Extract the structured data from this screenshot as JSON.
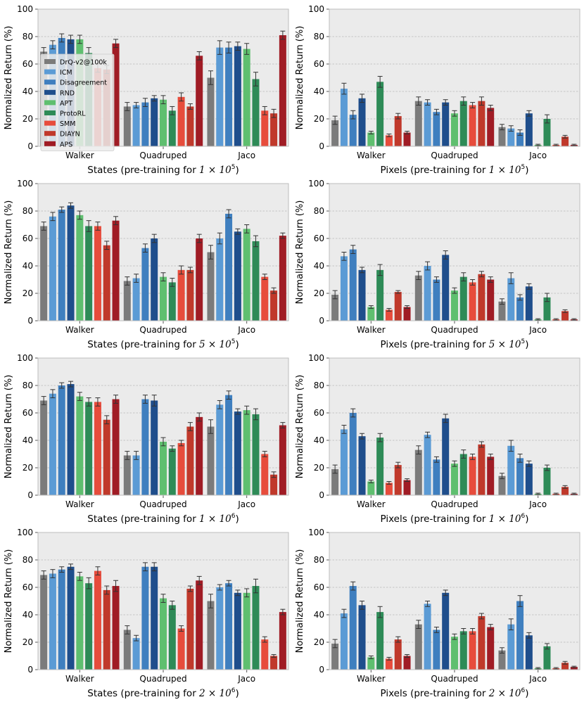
{
  "figure": {
    "ylabel": "Normalized Return (%)",
    "categories": [
      "Walker",
      "Quadruped",
      "Jaco"
    ],
    "method_names": [
      "DrQ-v2@100k",
      "ICM",
      "Disagreement",
      "RND",
      "APT",
      "ProtoRL",
      "SMM",
      "DIAYN",
      "APS"
    ],
    "method_colors": [
      "#7b7b7b",
      "#5b9bd5",
      "#3f7fbf",
      "#1f4e8c",
      "#5fbf6f",
      "#2e8b57",
      "#e74c3c",
      "#c0392b",
      "#a01c25"
    ]
  },
  "chart_data": [
    {
      "type": "bar",
      "xlabel": "States (pre-training for",
      "xlabel_math": "1 × 10",
      "xlabel_exp": "5",
      "categories": [
        "Walker",
        "Quadruped",
        "Jaco"
      ],
      "ylim": [
        0,
        100
      ],
      "yticks": [
        0,
        20,
        40,
        60,
        80,
        100
      ],
      "grid": true,
      "legend": "upper-left",
      "series": [
        {
          "name": "DrQ-v2@100k",
          "values": [
            69,
            29,
            50
          ],
          "errors": [
            3,
            3,
            5
          ]
        },
        {
          "name": "ICM",
          "values": [
            74,
            30,
            72
          ],
          "errors": [
            3,
            2,
            5
          ]
        },
        {
          "name": "Disagreement",
          "values": [
            79,
            32,
            72
          ],
          "errors": [
            3,
            3,
            4
          ]
        },
        {
          "name": "RND",
          "values": [
            78,
            35,
            73
          ],
          "errors": [
            3,
            2,
            3
          ]
        },
        {
          "name": "APT",
          "values": [
            78,
            34,
            71
          ],
          "errors": [
            3,
            3,
            4
          ]
        },
        {
          "name": "ProtoRL",
          "values": [
            68,
            26,
            49
          ],
          "errors": [
            4,
            3,
            5
          ]
        },
        {
          "name": "SMM",
          "values": [
            57,
            36,
            26
          ],
          "errors": [
            3,
            3,
            3
          ]
        },
        {
          "name": "DIAYN",
          "values": [
            56,
            29,
            24
          ],
          "errors": [
            3,
            2,
            3
          ]
        },
        {
          "name": "APS",
          "values": [
            75,
            66,
            81
          ],
          "errors": [
            3,
            3,
            3
          ]
        }
      ]
    },
    {
      "type": "bar",
      "xlabel": "Pixels (pre-training for",
      "xlabel_math": "1 × 10",
      "xlabel_exp": "5",
      "categories": [
        "Walker",
        "Quadruped",
        "Jaco"
      ],
      "ylim": [
        0,
        100
      ],
      "yticks": [
        0,
        20,
        40,
        60,
        80,
        100
      ],
      "grid": true,
      "series": [
        {
          "name": "DrQ-v2@100k",
          "values": [
            19,
            33,
            14
          ],
          "errors": [
            3,
            3,
            2
          ]
        },
        {
          "name": "ICM",
          "values": [
            42,
            32,
            13
          ],
          "errors": [
            4,
            2,
            2
          ]
        },
        {
          "name": "Disagreement",
          "values": [
            23,
            25,
            10
          ],
          "errors": [
            3,
            2,
            2
          ]
        },
        {
          "name": "RND",
          "values": [
            35,
            32,
            24
          ],
          "errors": [
            3,
            2,
            2
          ]
        },
        {
          "name": "APT",
          "values": [
            10,
            24,
            1
          ],
          "errors": [
            1,
            2,
            0.5
          ]
        },
        {
          "name": "ProtoRL",
          "values": [
            47,
            33,
            20
          ],
          "errors": [
            4,
            3,
            3
          ]
        },
        {
          "name": "SMM",
          "values": [
            8,
            30,
            1
          ],
          "errors": [
            1,
            2,
            0.5
          ]
        },
        {
          "name": "DIAYN",
          "values": [
            22,
            33,
            7
          ],
          "errors": [
            2,
            3,
            1
          ]
        },
        {
          "name": "APS",
          "values": [
            10,
            28,
            1
          ],
          "errors": [
            1,
            2,
            0.5
          ]
        }
      ]
    },
    {
      "type": "bar",
      "xlabel": "States (pre-training for",
      "xlabel_math": "5 × 10",
      "xlabel_exp": "5",
      "categories": [
        "Walker",
        "Quadruped",
        "Jaco"
      ],
      "ylim": [
        0,
        100
      ],
      "yticks": [
        0,
        20,
        40,
        60,
        80,
        100
      ],
      "grid": true,
      "series": [
        {
          "name": "DrQ-v2@100k",
          "values": [
            69,
            29,
            50
          ],
          "errors": [
            3,
            3,
            5
          ]
        },
        {
          "name": "ICM",
          "values": [
            76,
            31,
            60
          ],
          "errors": [
            3,
            3,
            4
          ]
        },
        {
          "name": "Disagreement",
          "values": [
            81,
            53,
            78
          ],
          "errors": [
            2,
            3,
            3
          ]
        },
        {
          "name": "RND",
          "values": [
            84,
            60,
            65
          ],
          "errors": [
            2,
            3,
            2
          ]
        },
        {
          "name": "APT",
          "values": [
            77,
            32,
            67
          ],
          "errors": [
            3,
            3,
            3
          ]
        },
        {
          "name": "ProtoRL",
          "values": [
            69,
            28,
            58
          ],
          "errors": [
            4,
            3,
            4
          ]
        },
        {
          "name": "SMM",
          "values": [
            69,
            37,
            32
          ],
          "errors": [
            3,
            3,
            2
          ]
        },
        {
          "name": "DIAYN",
          "values": [
            55,
            37,
            22
          ],
          "errors": [
            3,
            2,
            2
          ]
        },
        {
          "name": "APS",
          "values": [
            73,
            60,
            62
          ],
          "errors": [
            3,
            3,
            2
          ]
        }
      ]
    },
    {
      "type": "bar",
      "xlabel": "Pixels (pre-training for",
      "xlabel_math": "5 × 10",
      "xlabel_exp": "5",
      "categories": [
        "Walker",
        "Quadruped",
        "Jaco"
      ],
      "ylim": [
        0,
        100
      ],
      "yticks": [
        0,
        20,
        40,
        60,
        80,
        100
      ],
      "grid": true,
      "series": [
        {
          "name": "DrQ-v2@100k",
          "values": [
            19,
            33,
            14
          ],
          "errors": [
            3,
            3,
            2
          ]
        },
        {
          "name": "ICM",
          "values": [
            47,
            40,
            31
          ],
          "errors": [
            3,
            3,
            4
          ]
        },
        {
          "name": "Disagreement",
          "values": [
            52,
            30,
            17
          ],
          "errors": [
            3,
            2,
            2
          ]
        },
        {
          "name": "RND",
          "values": [
            37,
            48,
            25
          ],
          "errors": [
            2,
            3,
            2
          ]
        },
        {
          "name": "APT",
          "values": [
            10,
            22,
            1
          ],
          "errors": [
            1,
            2,
            0.5
          ]
        },
        {
          "name": "ProtoRL",
          "values": [
            37,
            32,
            17
          ],
          "errors": [
            4,
            3,
            3
          ]
        },
        {
          "name": "SMM",
          "values": [
            8,
            28,
            1
          ],
          "errors": [
            1,
            2,
            0.5
          ]
        },
        {
          "name": "DIAYN",
          "values": [
            21,
            34,
            7
          ],
          "errors": [
            1,
            2,
            1
          ]
        },
        {
          "name": "APS",
          "values": [
            10,
            30,
            1
          ],
          "errors": [
            1,
            2,
            0.5
          ]
        }
      ]
    },
    {
      "type": "bar",
      "xlabel": "States (pre-training for",
      "xlabel_math": "1 × 10",
      "xlabel_exp": "6",
      "categories": [
        "Walker",
        "Quadruped",
        "Jaco"
      ],
      "ylim": [
        0,
        100
      ],
      "yticks": [
        0,
        20,
        40,
        60,
        80,
        100
      ],
      "grid": true,
      "series": [
        {
          "name": "DrQ-v2@100k",
          "values": [
            69,
            29,
            50
          ],
          "errors": [
            3,
            3,
            5
          ]
        },
        {
          "name": "ICM",
          "values": [
            74,
            29,
            66
          ],
          "errors": [
            3,
            3,
            3
          ]
        },
        {
          "name": "Disagreement",
          "values": [
            80,
            70,
            73
          ],
          "errors": [
            2,
            3,
            3
          ]
        },
        {
          "name": "RND",
          "values": [
            81,
            69,
            61
          ],
          "errors": [
            2,
            4,
            2
          ]
        },
        {
          "name": "APT",
          "values": [
            72,
            39,
            62
          ],
          "errors": [
            3,
            3,
            3
          ]
        },
        {
          "name": "ProtoRL",
          "values": [
            68,
            34,
            59
          ],
          "errors": [
            3,
            2,
            4
          ]
        },
        {
          "name": "SMM",
          "values": [
            68,
            38,
            30
          ],
          "errors": [
            3,
            2,
            2
          ]
        },
        {
          "name": "DIAYN",
          "values": [
            55,
            50,
            15
          ],
          "errors": [
            3,
            3,
            2
          ]
        },
        {
          "name": "APS",
          "values": [
            70,
            57,
            51
          ],
          "errors": [
            3,
            3,
            2
          ]
        }
      ]
    },
    {
      "type": "bar",
      "xlabel": "Pixels (pre-training for",
      "xlabel_math": "1 × 10",
      "xlabel_exp": "6",
      "categories": [
        "Walker",
        "Quadruped",
        "Jaco"
      ],
      "ylim": [
        0,
        100
      ],
      "yticks": [
        0,
        20,
        40,
        60,
        80,
        100
      ],
      "grid": true,
      "series": [
        {
          "name": "DrQ-v2@100k",
          "values": [
            19,
            33,
            14
          ],
          "errors": [
            3,
            3,
            2
          ]
        },
        {
          "name": "ICM",
          "values": [
            48,
            44,
            36
          ],
          "errors": [
            3,
            2,
            4
          ]
        },
        {
          "name": "Disagreement",
          "values": [
            60,
            26,
            27
          ],
          "errors": [
            3,
            2,
            3
          ]
        },
        {
          "name": "RND",
          "values": [
            43,
            56,
            23
          ],
          "errors": [
            2,
            3,
            2
          ]
        },
        {
          "name": "APT",
          "values": [
            10,
            23,
            1
          ],
          "errors": [
            1,
            2,
            0.5
          ]
        },
        {
          "name": "ProtoRL",
          "values": [
            42,
            30,
            20
          ],
          "errors": [
            3,
            3,
            2
          ]
        },
        {
          "name": "SMM",
          "values": [
            9,
            28,
            1
          ],
          "errors": [
            1,
            2,
            0.5
          ]
        },
        {
          "name": "DIAYN",
          "values": [
            22,
            37,
            6
          ],
          "errors": [
            2,
            2,
            1
          ]
        },
        {
          "name": "APS",
          "values": [
            11,
            28,
            1
          ],
          "errors": [
            1,
            2,
            0.5
          ]
        }
      ]
    },
    {
      "type": "bar",
      "xlabel": "States (pre-training for",
      "xlabel_math": "2 × 10",
      "xlabel_exp": "6",
      "categories": [
        "Walker",
        "Quadruped",
        "Jaco"
      ],
      "ylim": [
        0,
        100
      ],
      "yticks": [
        0,
        20,
        40,
        60,
        80,
        100
      ],
      "grid": true,
      "series": [
        {
          "name": "DrQ-v2@100k",
          "values": [
            69,
            29,
            50
          ],
          "errors": [
            3,
            3,
            5
          ]
        },
        {
          "name": "ICM",
          "values": [
            70,
            23,
            60
          ],
          "errors": [
            3,
            2,
            2
          ]
        },
        {
          "name": "Disagreement",
          "values": [
            73,
            75,
            63
          ],
          "errors": [
            2,
            3,
            2
          ]
        },
        {
          "name": "RND",
          "values": [
            75,
            75,
            56
          ],
          "errors": [
            2,
            3,
            2
          ]
        },
        {
          "name": "APT",
          "values": [
            68,
            52,
            56
          ],
          "errors": [
            3,
            3,
            3
          ]
        },
        {
          "name": "ProtoRL",
          "values": [
            63,
            47,
            61
          ],
          "errors": [
            4,
            3,
            5
          ]
        },
        {
          "name": "SMM",
          "values": [
            72,
            30,
            22
          ],
          "errors": [
            3,
            2,
            2
          ]
        },
        {
          "name": "DIAYN",
          "values": [
            58,
            59,
            10
          ],
          "errors": [
            3,
            2,
            1
          ]
        },
        {
          "name": "APS",
          "values": [
            61,
            65,
            42
          ],
          "errors": [
            4,
            3,
            2
          ]
        }
      ]
    },
    {
      "type": "bar",
      "xlabel": "Pixels (pre-training for",
      "xlabel_math": "2 × 10",
      "xlabel_exp": "6",
      "categories": [
        "Walker",
        "Quadruped",
        "Jaco"
      ],
      "ylim": [
        0,
        100
      ],
      "yticks": [
        0,
        20,
        40,
        60,
        80,
        100
      ],
      "grid": true,
      "series": [
        {
          "name": "DrQ-v2@100k",
          "values": [
            19,
            33,
            14
          ],
          "errors": [
            3,
            3,
            2
          ]
        },
        {
          "name": "ICM",
          "values": [
            41,
            48,
            33
          ],
          "errors": [
            3,
            2,
            4
          ]
        },
        {
          "name": "Disagreement",
          "values": [
            61,
            29,
            50
          ],
          "errors": [
            3,
            2,
            4
          ]
        },
        {
          "name": "RND",
          "values": [
            47,
            56,
            25
          ],
          "errors": [
            3,
            2,
            2
          ]
        },
        {
          "name": "APT",
          "values": [
            9,
            24,
            1
          ],
          "errors": [
            1,
            2,
            0.5
          ]
        },
        {
          "name": "ProtoRL",
          "values": [
            42,
            28,
            17
          ],
          "errors": [
            4,
            2,
            2
          ]
        },
        {
          "name": "SMM",
          "values": [
            8,
            28,
            1
          ],
          "errors": [
            1,
            2,
            0.5
          ]
        },
        {
          "name": "DIAYN",
          "values": [
            22,
            39,
            5
          ],
          "errors": [
            2,
            2,
            1
          ]
        },
        {
          "name": "APS",
          "values": [
            10,
            31,
            2
          ],
          "errors": [
            1,
            2,
            0.5
          ]
        }
      ]
    }
  ]
}
